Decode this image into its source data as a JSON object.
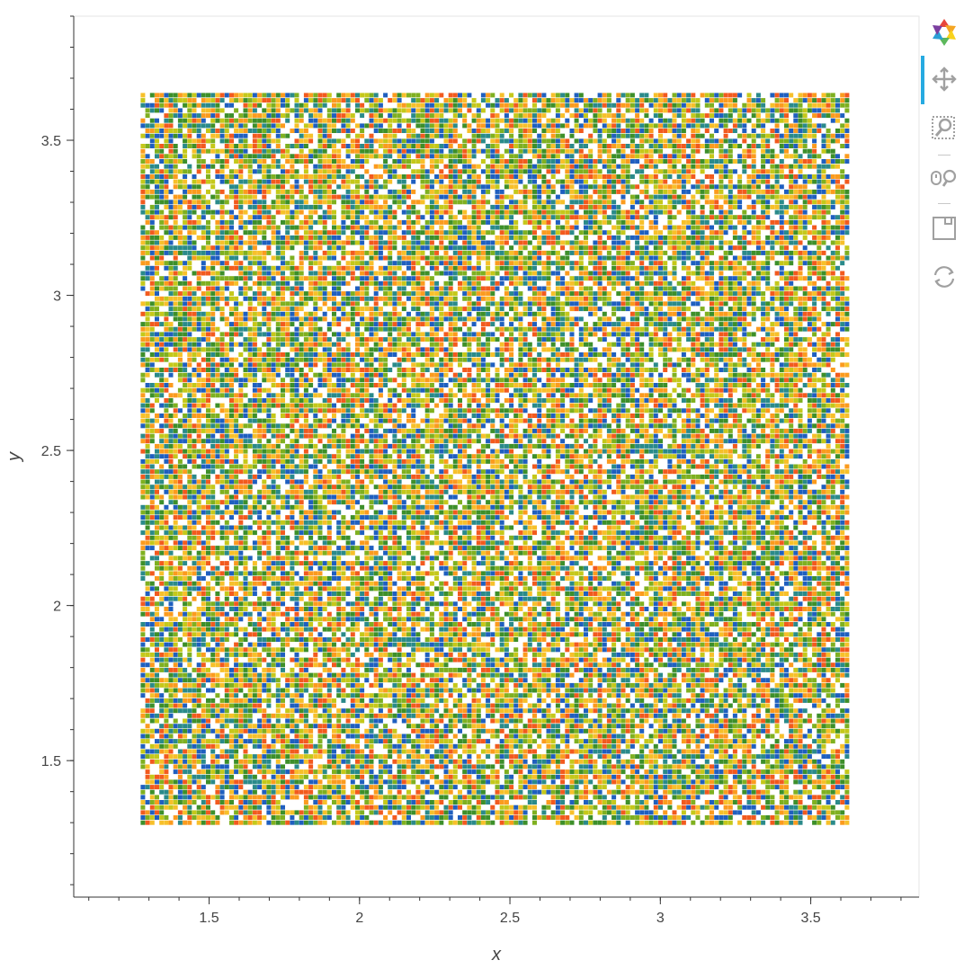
{
  "chart_data": {
    "type": "scatter",
    "title": "",
    "xlabel": "x",
    "ylabel": "y",
    "xlim": [
      1.05,
      3.86
    ],
    "ylim": [
      1.06,
      3.9
    ],
    "x_ticks": [
      1.5,
      2,
      2.5,
      3,
      3.5
    ],
    "x_tick_labels": [
      "1.5",
      "2",
      "2.5",
      "3",
      "3.5"
    ],
    "y_ticks": [
      1.5,
      2,
      2.5,
      3,
      3.5
    ],
    "y_tick_labels": [
      "1.5",
      "2",
      "2.5",
      "3",
      "3.5"
    ],
    "points_grid": {
      "x_start": 1.28,
      "x_end": 3.63,
      "x_step": 0.0155,
      "y_start": 1.3,
      "y_end": 3.66,
      "y_step": 0.0164
    },
    "palette": [
      "#1f5fbf",
      "#2a8a8a",
      "#3d8f2a",
      "#7fb020",
      "#c5c81a",
      "#f7c02a",
      "#fb9b1e",
      "#f25a1e"
    ],
    "grid": false,
    "legend": "none"
  },
  "toolbar": {
    "items": [
      {
        "name": "bokeh-logo",
        "icon": "bokeh-logo-icon"
      },
      {
        "name": "pan-tool",
        "icon": "pan-icon",
        "active": true
      },
      {
        "name": "box-zoom-tool",
        "icon": "box-zoom-icon"
      },
      {
        "name": "wheel-zoom-tool",
        "icon": "wheel-zoom-icon"
      },
      {
        "name": "save-tool",
        "icon": "save-icon"
      },
      {
        "name": "reset-tool",
        "icon": "reset-icon"
      }
    ],
    "active_color": "#26aae1",
    "icon_color": "#a0a0a0"
  }
}
